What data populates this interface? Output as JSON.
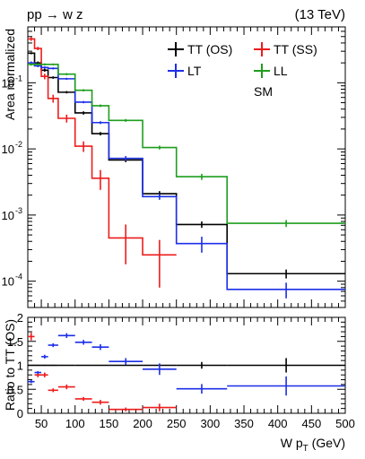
{
  "header": {
    "process": "pp → w z",
    "energy": "(13 TeV)",
    "tag": "SM"
  },
  "colors": {
    "TT (OS)": "#000000",
    "TT (SS)": "#ee1c1c",
    "LT": "#1c2fe8",
    "LL": "#1e9e1e"
  },
  "chart_data": [
    {
      "type": "line",
      "title": "",
      "ylabel": "Area normalized",
      "yscale": "log",
      "ylim": [
        4e-05,
        0.7
      ],
      "xlim": [
        30,
        500
      ],
      "yticks": [
        {
          "value": 0.1,
          "label": "10^-1"
        },
        {
          "value": 0.01,
          "label": "10^-2"
        },
        {
          "value": 0.001,
          "label": "10^-3"
        },
        {
          "value": 0.0001,
          "label": "10^-4"
        }
      ],
      "legend_position": "top-right",
      "bin_edges": [
        30,
        40,
        50,
        60,
        75,
        100,
        125,
        150,
        200,
        250,
        325,
        500
      ],
      "series": [
        {
          "name": "TT (OS)",
          "values": [
            0.28,
            0.2,
            0.155,
            0.12,
            0.072,
            0.035,
            0.017,
            0.0068,
            0.0021,
            0.00072,
            0.00013
          ],
          "errors": [
            0.01,
            0.01,
            0.008,
            0.005,
            0.003,
            0.002,
            0.001,
            0.0005,
            0.0002,
            8e-05,
            2e-05
          ]
        },
        {
          "name": "TT (SS)",
          "values": [
            0.46,
            0.33,
            0.125,
            0.058,
            0.029,
            0.011,
            0.0036,
            0.00045,
            0.00025,
            null,
            null
          ],
          "errors": [
            0.03,
            0.02,
            0.012,
            0.008,
            0.004,
            0.002,
            0.0012,
            0.00027,
            0.00017,
            null,
            null
          ]
        },
        {
          "name": "LT",
          "values": [
            0.2,
            0.18,
            0.17,
            0.165,
            0.115,
            0.051,
            0.025,
            0.0072,
            0.0019,
            0.00037,
            7.5e-05
          ],
          "errors": [
            0.01,
            0.008,
            0.007,
            0.006,
            0.004,
            0.002,
            0.0012,
            0.0006,
            0.0002,
            0.0001,
            2e-05
          ]
        },
        {
          "name": "LL",
          "values": [
            0.19,
            0.19,
            0.19,
            0.19,
            0.135,
            0.077,
            0.045,
            0.027,
            0.0105,
            0.0038,
            0.00075
          ],
          "errors": [
            0.008,
            0.007,
            0.007,
            0.006,
            0.005,
            0.003,
            0.002,
            0.0013,
            0.0007,
            0.0004,
            9e-05
          ]
        }
      ]
    },
    {
      "type": "scatter",
      "title": "",
      "xlabel": "W p_T (GeV)",
      "ylabel": "Ratio to TT (OS)",
      "xlim": [
        30,
        500
      ],
      "ylim": [
        0,
        2
      ],
      "xticks": [
        50,
        100,
        150,
        200,
        250,
        300,
        350,
        400,
        450,
        500
      ],
      "yticks": [
        0,
        0.5,
        1,
        1.5,
        2
      ],
      "bin_edges": [
        30,
        40,
        50,
        60,
        75,
        100,
        125,
        150,
        200,
        250,
        325,
        500
      ],
      "series": [
        {
          "name": "TT (OS)",
          "values": [
            1,
            1,
            1,
            1,
            1,
            1,
            1,
            1,
            1,
            1,
            1
          ],
          "errors": [
            0,
            0,
            0,
            0,
            0,
            0,
            0,
            0,
            0,
            0.07,
            0.15
          ]
        },
        {
          "name": "TT (SS)",
          "values": [
            1.6,
            0.8,
            0.8,
            0.48,
            0.55,
            0.3,
            0.23,
            0.08,
            0.12,
            null,
            null
          ],
          "errors": [
            0.08,
            0.05,
            0.05,
            0.04,
            0.05,
            0.04,
            0.05,
            0.04,
            0.08,
            null,
            null
          ]
        },
        {
          "name": "LT",
          "values": [
            0.66,
            0.85,
            1.18,
            1.42,
            1.62,
            1.48,
            1.38,
            1.08,
            0.92,
            0.51,
            0.57
          ],
          "errors": [
            0.03,
            0.03,
            0.04,
            0.04,
            0.05,
            0.05,
            0.06,
            0.07,
            0.12,
            0.1,
            0.2
          ]
        }
      ]
    }
  ]
}
